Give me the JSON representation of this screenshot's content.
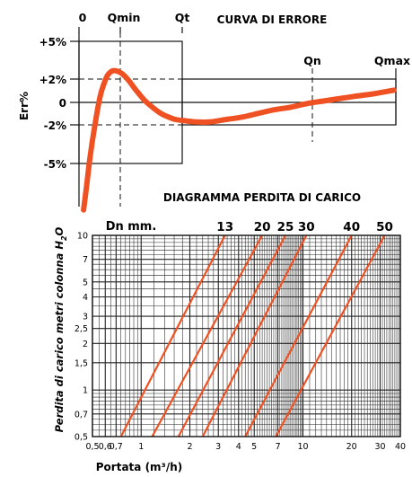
{
  "colors": {
    "curve": "#ef5123",
    "ink": "#111111",
    "grid": "#222222",
    "background": "#ffffff"
  },
  "chart_data": [
    {
      "type": "line",
      "title": "CURVA DI ERRORE",
      "ylabel": "Err%",
      "x_markers": [
        "0",
        "Qmin",
        "Qt",
        "Qn",
        "Qmax"
      ],
      "y_ticks": [
        "+5%",
        "+2%",
        "0",
        "-2%",
        "-5%"
      ],
      "y_tick_values": [
        5,
        2,
        0,
        -2,
        -5
      ],
      "ylim": [
        -9.2,
        6.8
      ],
      "x": [
        0.1,
        0.16,
        0.24,
        0.34,
        0.46,
        0.58,
        0.66,
        0.76,
        0.92,
        1.08,
        1.24,
        1.42,
        1.6,
        1.78,
        1.95,
        2.1,
        2.3,
        2.55,
        2.85,
        3.2,
        3.55,
        3.9,
        4.25,
        4.6,
        4.95,
        5.3,
        5.65,
        6.0,
        6.4,
        6.85
      ],
      "series": [
        {
          "values": [
            -8.8,
            -7.0,
            -4.5,
            -2.0,
            0.5,
            1.9,
            2.4,
            2.6,
            2.4,
            1.8,
            1.0,
            0.2,
            -0.4,
            -0.9,
            -1.2,
            -1.4,
            -1.5,
            -1.6,
            -1.6,
            -1.4,
            -1.2,
            -0.9,
            -0.6,
            -0.4,
            -0.1,
            0.1,
            0.3,
            0.5,
            0.7,
            1.0
          ]
        }
      ]
    },
    {
      "type": "line",
      "title": "DIAGRAMMA PERDITA DI CARICO",
      "xlabel": "Portata (m³/h)",
      "ylabel_parts": [
        "Perdita di carico metri colonna H",
        "2",
        "O"
      ],
      "scale": "log-log",
      "grid": true,
      "legend_caption": "Dn mm.",
      "x_ticks": [
        "0,5",
        "0,6",
        "0,7",
        "1",
        "2",
        "3",
        "4",
        "5",
        "7",
        "10",
        "20",
        "30",
        "40"
      ],
      "x_tick_values": [
        0.5,
        0.6,
        0.7,
        1,
        2,
        3,
        4,
        5,
        7,
        10,
        20,
        30,
        40
      ],
      "y_ticks": [
        "10",
        "7",
        "5",
        "4",
        "3",
        "2,5",
        "2",
        "1,5",
        "1",
        "0,7",
        "0,5"
      ],
      "y_tick_values": [
        10,
        7,
        5,
        4,
        3,
        2.5,
        2,
        1.5,
        1,
        0.7,
        0.5
      ],
      "xlim": [
        0.5,
        40
      ],
      "ylim": [
        0.5,
        10
      ],
      "series": [
        {
          "name": "13",
          "x": [
            0.75,
            3.3
          ],
          "y": [
            0.5,
            10
          ]
        },
        {
          "name": "20",
          "x": [
            1.17,
            5.6
          ],
          "y": [
            0.5,
            10
          ]
        },
        {
          "name": "25",
          "x": [
            1.7,
            7.8
          ],
          "y": [
            0.5,
            10
          ]
        },
        {
          "name": "30",
          "x": [
            2.4,
            10.5
          ],
          "y": [
            0.5,
            10
          ]
        },
        {
          "name": "40",
          "x": [
            4.4,
            20.0
          ],
          "y": [
            0.5,
            10
          ]
        },
        {
          "name": "50",
          "x": [
            6.8,
            32.0
          ],
          "y": [
            0.5,
            10
          ]
        }
      ]
    }
  ]
}
